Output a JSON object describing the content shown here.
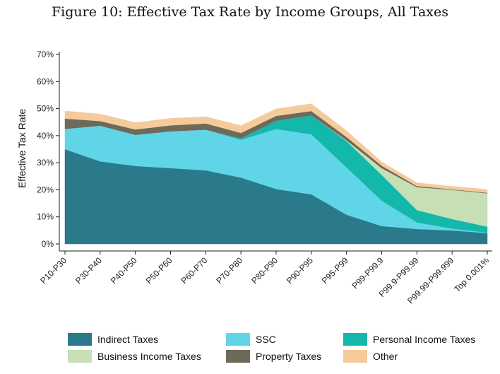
{
  "chart_data": {
    "type": "area",
    "stacked": true,
    "title": "Figure 10: Effective Tax Rate by Income Groups, All Taxes",
    "xlabel": "",
    "ylabel": "Effective Tax Rate",
    "ylim": [
      0,
      70
    ],
    "yticks": [
      "0%",
      "10%",
      "20%",
      "30%",
      "40%",
      "50%",
      "60%",
      "70%"
    ],
    "categories": [
      "P10-P30",
      "P30-P40",
      "P40-P50",
      "P50-P60",
      "P60-P70",
      "P70-P80",
      "P80-P90",
      "P90-P95",
      "P95-P99",
      "P99-P99.9",
      "P99.9-P99.99",
      "P99.99-P99.999",
      "Top 0.001%"
    ],
    "legend_position": "bottom",
    "series": [
      {
        "name": "Indirect Taxes",
        "color": "#2a7a8c",
        "values": [
          35.0,
          30.5,
          28.8,
          28.0,
          27.2,
          24.5,
          20.3,
          18.3,
          10.8,
          6.6,
          5.5,
          5.0,
          4.0
        ]
      },
      {
        "name": "SSC",
        "color": "#60d5e8",
        "values": [
          7.5,
          13.2,
          11.5,
          13.6,
          15.0,
          14.0,
          22.2,
          22.2,
          17.5,
          9.4,
          2.5,
          0.7,
          0.2
        ]
      },
      {
        "name": "Personal Income Taxes",
        "color": "#14b8aa",
        "values": [
          0.0,
          0.0,
          0.0,
          0.0,
          0.0,
          0.5,
          3.0,
          7.0,
          9.7,
          9.5,
          4.5,
          3.5,
          2.2
        ]
      },
      {
        "name": "Business Income Taxes",
        "color": "#c6dfb5",
        "values": [
          0.0,
          0.0,
          0.0,
          0.0,
          0.0,
          0.0,
          0.0,
          0.0,
          0.3,
          2.5,
          8.5,
          10.8,
          12.3
        ]
      },
      {
        "name": "Property Taxes",
        "color": "#6d6a5a",
        "values": [
          3.8,
          1.7,
          2.0,
          2.2,
          2.3,
          2.0,
          1.8,
          1.6,
          1.2,
          0.9,
          0.4,
          0.2,
          0.2
        ]
      },
      {
        "name": "Other",
        "color": "#f5cb9b",
        "values": [
          2.8,
          2.6,
          2.5,
          2.6,
          2.5,
          2.7,
          2.6,
          2.7,
          2.3,
          1.4,
          1.2,
          1.1,
          1.2
        ]
      }
    ]
  }
}
